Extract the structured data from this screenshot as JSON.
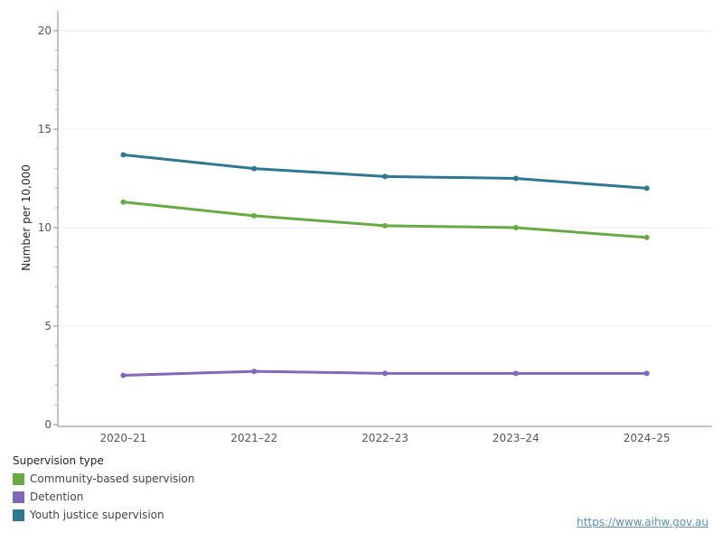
{
  "chart_data": {
    "type": "line",
    "categories": [
      "2020–21",
      "2021–22",
      "2022–23",
      "2023–24",
      "2024–25"
    ],
    "series": [
      {
        "name": "Community-based supervision",
        "color": "#6aaa44",
        "values": [
          11.3,
          10.6,
          10.1,
          10.0,
          9.5
        ]
      },
      {
        "name": "Detention",
        "color": "#8069b9",
        "values": [
          2.5,
          2.7,
          2.6,
          2.6,
          2.6
        ]
      },
      {
        "name": "Youth justice supervision",
        "color": "#2e7891",
        "values": [
          13.7,
          13.0,
          12.6,
          12.5,
          12.0
        ]
      }
    ],
    "ylabel": "Number per 10,000",
    "ylim": [
      0,
      20
    ],
    "yticks": [
      0,
      5,
      10,
      15,
      20
    ],
    "grid": true,
    "legend_title": "Supervision type",
    "legend_position": "bottom-left"
  },
  "footer": {
    "source_url": "https://www.aihw.gov.au"
  }
}
